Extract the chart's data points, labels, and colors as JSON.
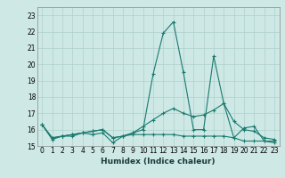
{
  "xlabel": "Humidex (Indice chaleur)",
  "ylabel": "",
  "background_color": "#cde8e5",
  "plot_bg_color": "#cde8e5",
  "grid_color": "#afd0cd",
  "line_color": "#1a7a6e",
  "xlim": [
    -0.5,
    23.5
  ],
  "ylim": [
    15.0,
    23.5
  ],
  "yticks": [
    15,
    16,
    17,
    18,
    19,
    20,
    21,
    22,
    23
  ],
  "xticks": [
    0,
    1,
    2,
    3,
    4,
    5,
    6,
    7,
    8,
    9,
    10,
    11,
    12,
    13,
    14,
    15,
    16,
    17,
    18,
    19,
    20,
    21,
    22,
    23
  ],
  "tick_fontsize": 5.5,
  "xlabel_fontsize": 6.5,
  "series": [
    [
      16.3,
      15.4,
      15.6,
      15.6,
      15.8,
      15.7,
      15.8,
      15.2,
      15.6,
      15.8,
      16.0,
      19.4,
      21.9,
      22.6,
      19.5,
      16.0,
      16.0,
      20.5,
      17.6,
      15.5,
      16.1,
      16.2,
      15.3,
      15.2
    ],
    [
      16.3,
      15.5,
      15.6,
      15.7,
      15.8,
      15.9,
      16.0,
      15.5,
      15.6,
      15.8,
      16.2,
      16.6,
      17.0,
      17.3,
      17.0,
      16.8,
      16.9,
      17.2,
      17.6,
      16.5,
      16.0,
      15.9,
      15.5,
      15.4
    ],
    [
      16.3,
      15.5,
      15.6,
      15.7,
      15.8,
      15.9,
      16.0,
      15.5,
      15.6,
      15.7,
      15.7,
      15.7,
      15.7,
      15.7,
      15.6,
      15.6,
      15.6,
      15.6,
      15.6,
      15.5,
      15.3,
      15.3,
      15.3,
      15.3
    ]
  ]
}
